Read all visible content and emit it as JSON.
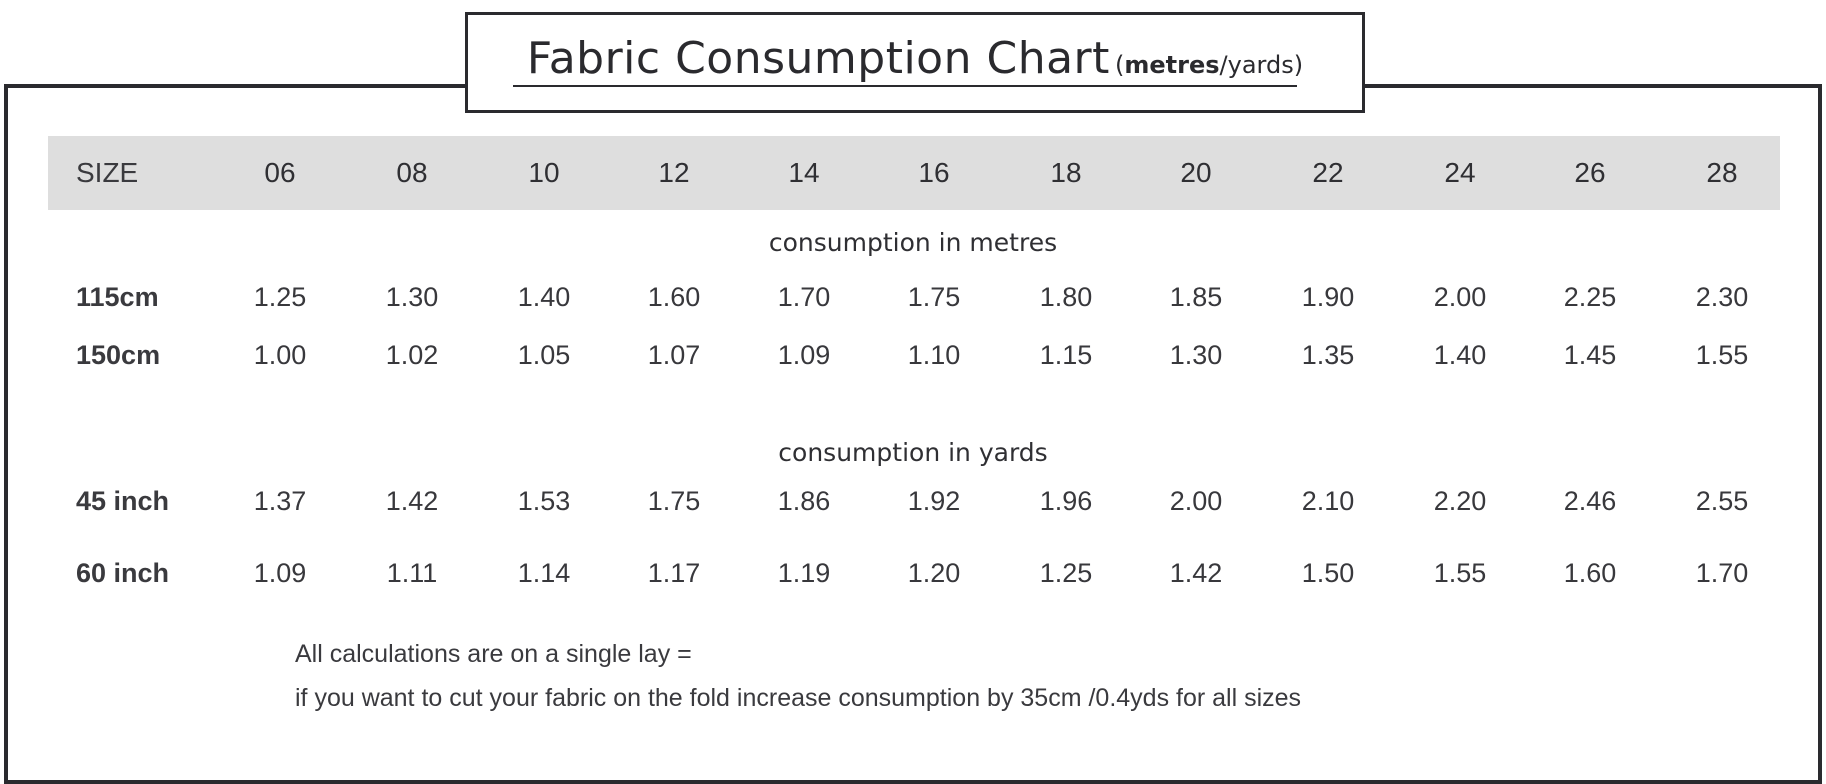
{
  "chart_data": {
    "type": "table",
    "title": "Fabric Consumption Chart",
    "title_units": {
      "bold": "metres",
      "sep": "/",
      "rest": "yards"
    },
    "header_label": "SIZE",
    "sizes": [
      "06",
      "08",
      "10",
      "12",
      "14",
      "16",
      "18",
      "20",
      "22",
      "24",
      "26",
      "28"
    ],
    "sections": [
      {
        "title": "consumption in metres",
        "rows": [
          {
            "label": "115cm",
            "values": [
              "1.25",
              "1.30",
              "1.40",
              "1.60",
              "1.70",
              "1.75",
              "1.80",
              "1.85",
              "1.90",
              "2.00",
              "2.25",
              "2.30"
            ]
          },
          {
            "label": "150cm",
            "values": [
              "1.00",
              "1.02",
              "1.05",
              "1.07",
              "1.09",
              "1.10",
              "1.15",
              "1.30",
              "1.35",
              "1.40",
              "1.45",
              "1.55"
            ]
          }
        ]
      },
      {
        "title": "consumption in yards",
        "rows": [
          {
            "label": "45 inch",
            "values": [
              "1.37",
              "1.42",
              "1.53",
              "1.75",
              "1.86",
              "1.92",
              "1.96",
              "2.00",
              "2.10",
              "2.20",
              "2.46",
              "2.55"
            ]
          },
          {
            "label": "60 inch",
            "values": [
              "1.09",
              "1.11",
              "1.14",
              "1.17",
              "1.19",
              "1.20",
              "1.25",
              "1.42",
              "1.50",
              "1.55",
              "1.60",
              "1.70"
            ]
          }
        ]
      }
    ],
    "notes": [
      "All calculations are on a single lay =",
      "if you want to cut your fabric on the fold increase consumption by 35cm /0.4yds for all sizes"
    ]
  }
}
